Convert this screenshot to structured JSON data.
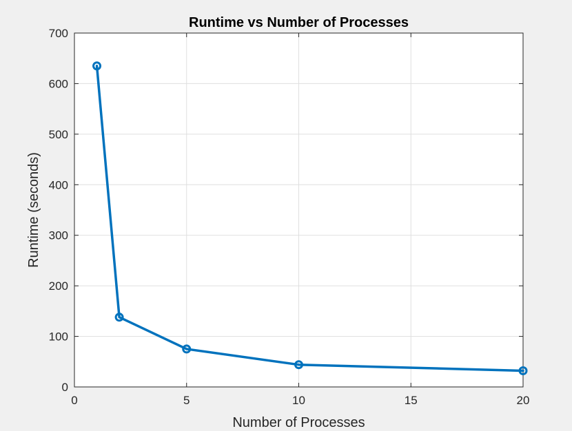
{
  "chart_data": {
    "type": "line",
    "title": "Runtime vs Number of Processes",
    "xlabel": "Number of Processes",
    "ylabel": "Runtime (seconds)",
    "xlim": [
      0,
      20
    ],
    "ylim": [
      0,
      700
    ],
    "xticks": [
      0,
      5,
      10,
      15,
      20
    ],
    "yticks": [
      0,
      100,
      200,
      300,
      400,
      500,
      600,
      700
    ],
    "grid": true,
    "marker": "circle",
    "series": [
      {
        "x": [
          1,
          2,
          5,
          10,
          20
        ],
        "y": [
          635,
          138,
          75,
          44,
          32
        ],
        "color": "#0072bd"
      }
    ]
  }
}
